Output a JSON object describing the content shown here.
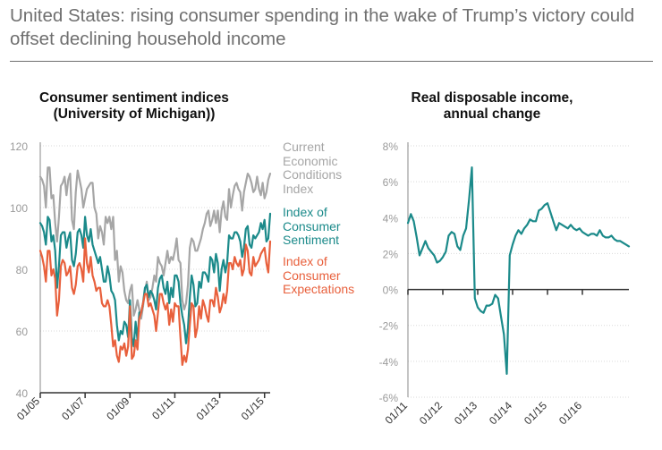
{
  "title": "United States: rising consumer spending in the wake of Trump’s victory could offset declining household income",
  "charts": {
    "sentiment": {
      "title_line1": "Consumer sentiment indices",
      "title_line2": "(University of Michigan))",
      "legend": [
        {
          "label": "Current Economic Conditions Index",
          "color": "#a6a6a6"
        },
        {
          "label": "Index of Consumer Sentiment",
          "color": "#1b8a8a"
        },
        {
          "label": "Index of Consumer Expectations",
          "color": "#e8603c"
        }
      ]
    },
    "income": {
      "title_line1": "Real disposable income,",
      "title_line2": "annual change"
    }
  },
  "chart_data": [
    {
      "type": "line",
      "title": "Consumer sentiment indices (University of Michigan))",
      "xlabel": "",
      "ylabel": "",
      "ylim": [
        40,
        120
      ],
      "yticks": [
        "40",
        "60",
        "80",
        "100",
        "120"
      ],
      "xticks": [
        "01/05",
        "01/07",
        "01/09",
        "01/11",
        "01/13",
        "01/15"
      ],
      "x_start": "01/05",
      "x_step": "month",
      "series": [
        {
          "name": "Current Economic Conditions Index",
          "color": "#a6a6a6",
          "values": [
            110,
            109,
            107,
            100,
            113,
            113,
            103,
            104,
            95,
            89,
            97,
            107,
            108,
            110,
            104,
            109,
            111,
            96,
            93,
            105,
            112,
            109,
            106,
            100,
            103,
            106,
            107,
            108,
            108,
            100,
            98,
            90,
            94,
            92,
            88,
            97,
            95,
            97,
            93,
            97,
            83,
            86,
            76,
            81,
            79,
            73,
            70,
            69,
            73,
            75,
            65,
            67,
            70,
            67,
            64,
            68,
            73,
            76,
            70,
            71,
            74,
            78,
            76,
            84,
            82,
            81,
            78,
            82,
            86,
            82,
            84,
            83,
            86,
            90,
            83,
            82,
            70,
            67,
            69,
            75,
            87,
            90,
            89,
            86,
            86,
            88,
            90,
            93,
            95,
            98,
            99,
            94,
            96,
            99,
            95,
            99,
            92,
            99,
            102,
            97,
            96,
            106,
            100,
            104,
            107,
            108,
            106,
            105,
            99,
            105,
            108,
            111,
            110,
            108,
            105,
            106,
            110,
            106,
            104,
            108,
            103,
            105,
            109,
            111
          ]
        },
        {
          "name": "Index of Consumer Sentiment",
          "color": "#1b8a8a",
          "values": [
            95,
            94,
            92,
            88,
            97,
            96,
            89,
            91,
            86,
            74,
            81,
            91,
            92,
            92,
            87,
            90,
            92,
            83,
            81,
            85,
            92,
            93,
            91,
            87,
            97,
            91,
            89,
            93,
            88,
            86,
            84,
            82,
            84,
            80,
            76,
            76,
            81,
            78,
            73,
            72,
            70,
            62,
            57,
            60,
            59,
            63,
            62,
            58,
            70,
            58,
            55,
            63,
            57,
            66,
            66,
            69,
            74,
            75,
            71,
            73,
            72,
            70,
            67,
            74,
            77,
            78,
            74,
            72,
            76,
            69,
            74,
            71,
            78,
            78,
            76,
            69,
            65,
            62,
            56,
            61,
            71,
            78,
            75,
            68,
            69,
            76,
            74,
            79,
            79,
            78,
            76,
            84,
            83,
            79,
            85,
            82,
            73,
            80,
            83,
            79,
            82,
            91,
            90,
            90,
            92,
            92,
            91,
            89,
            84,
            87,
            93,
            94,
            88,
            87,
            91,
            90,
            91,
            92,
            95,
            93,
            96,
            89,
            90,
            98
          ]
        },
        {
          "name": "Index of Consumer Expectations",
          "color": "#e8603c",
          "values": [
            86,
            84,
            81,
            76,
            86,
            86,
            78,
            80,
            77,
            65,
            70,
            81,
            83,
            82,
            78,
            79,
            81,
            74,
            72,
            75,
            81,
            82,
            80,
            76,
            90,
            82,
            79,
            84,
            78,
            76,
            73,
            74,
            74,
            69,
            68,
            68,
            70,
            68,
            62,
            55,
            57,
            52,
            50,
            55,
            54,
            56,
            52,
            55,
            68,
            51,
            52,
            57,
            54,
            64,
            66,
            69,
            72,
            72,
            68,
            69,
            67,
            65,
            60,
            66,
            72,
            72,
            69,
            67,
            69,
            62,
            67,
            63,
            69,
            68,
            68,
            58,
            49,
            52,
            50,
            54,
            62,
            69,
            68,
            58,
            61,
            68,
            64,
            70,
            68,
            65,
            63,
            70,
            70,
            68,
            74,
            71,
            66,
            68,
            72,
            69,
            73,
            82,
            82,
            80,
            84,
            82,
            81,
            83,
            78,
            80,
            88,
            86,
            79,
            78,
            84,
            81,
            82,
            83,
            85,
            86,
            87,
            82,
            79,
            89
          ]
        }
      ]
    },
    {
      "type": "line",
      "title": "Real disposable income, annual change",
      "xlabel": "",
      "ylabel": "",
      "ylim": [
        -6,
        8
      ],
      "yticks": [
        "-6%",
        "-4%",
        "-2%",
        "0%",
        "2%",
        "4%",
        "6%",
        "8%"
      ],
      "xticks": [
        "01/11",
        "01/12",
        "01/13",
        "01/14",
        "01/15",
        "01/16"
      ],
      "x_start": "01/11",
      "x_step": "month",
      "series": [
        {
          "name": "Real disposable income, annual change",
          "color": "#1b8a8a",
          "values": [
            3.7,
            4.2,
            3.8,
            2.9,
            1.9,
            2.3,
            2.7,
            2.3,
            2.1,
            1.9,
            1.5,
            1.6,
            1.8,
            2.1,
            3.0,
            3.2,
            3.1,
            2.4,
            2.2,
            3.0,
            3.4,
            5.0,
            6.8,
            -0.5,
            -1.0,
            -1.2,
            -1.3,
            -0.9,
            -0.9,
            -0.8,
            -0.3,
            -0.5,
            -1.5,
            -2.5,
            -4.7,
            1.9,
            2.5,
            3.0,
            3.3,
            3.1,
            3.4,
            3.6,
            3.9,
            3.8,
            3.8,
            4.4,
            4.5,
            4.7,
            4.8,
            4.3,
            3.8,
            3.3,
            3.7,
            3.6,
            3.5,
            3.4,
            3.6,
            3.4,
            3.3,
            3.4,
            3.2,
            3.1,
            3.0,
            3.1,
            3.1,
            3.0,
            3.3,
            3.0,
            2.9,
            2.9,
            3.0,
            2.8,
            2.7,
            2.7,
            2.6,
            2.5,
            2.4
          ]
        }
      ]
    }
  ]
}
